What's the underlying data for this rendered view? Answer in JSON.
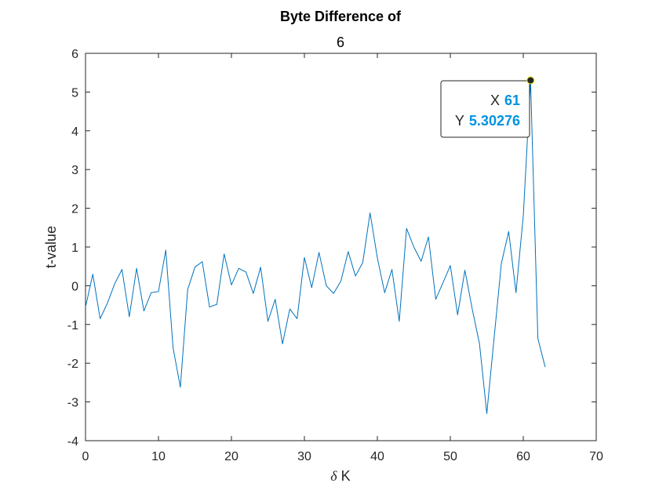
{
  "chart_data": {
    "type": "line",
    "title": "Byte Difference of",
    "subtitle": "6",
    "xlabel_symbol": "δ",
    "xlabel_text": " K",
    "ylabel": "t-value",
    "xlim": [
      0,
      70
    ],
    "ylim": [
      -4,
      6
    ],
    "xticks": [
      "0",
      "10",
      "20",
      "30",
      "40",
      "50",
      "60",
      "70"
    ],
    "yticks": [
      "-4",
      "-3",
      "-2",
      "-1",
      "0",
      "1",
      "2",
      "3",
      "4",
      "5",
      "6"
    ],
    "grid": false,
    "series": [
      {
        "color": "#0072BD",
        "x": [
          0,
          1,
          2,
          3,
          4,
          5,
          6,
          7,
          8,
          9,
          10,
          11,
          12,
          13,
          14,
          15,
          16,
          17,
          18,
          19,
          20,
          21,
          22,
          23,
          24,
          25,
          26,
          27,
          28,
          29,
          30,
          31,
          32,
          33,
          34,
          35,
          36,
          37,
          38,
          39,
          40,
          41,
          42,
          43,
          44,
          45,
          46,
          47,
          48,
          49,
          50,
          51,
          52,
          53,
          54,
          55,
          56,
          57,
          58,
          59,
          60,
          61,
          62,
          63
        ],
        "y": [
          -0.55,
          0.3,
          -0.85,
          -0.45,
          0.05,
          0.42,
          -0.8,
          0.45,
          -0.65,
          -0.18,
          -0.15,
          0.92,
          -1.6,
          -2.62,
          -0.1,
          0.48,
          0.62,
          -0.55,
          -0.48,
          0.82,
          0.02,
          0.45,
          0.35,
          -0.2,
          0.48,
          -0.92,
          -0.35,
          -1.5,
          -0.6,
          -0.85,
          0.73,
          -0.05,
          0.86,
          0.0,
          -0.2,
          0.12,
          0.88,
          0.25,
          0.6,
          1.88,
          0.72,
          -0.18,
          0.42,
          -0.92,
          1.48,
          1.0,
          0.63,
          1.26,
          -0.35,
          0.08,
          0.52,
          -0.75,
          0.4,
          -0.6,
          -1.5,
          -3.3,
          -1.35,
          0.58,
          1.4,
          -0.18,
          1.8,
          5.30276,
          -1.36,
          -2.1
        ]
      }
    ],
    "datatip": {
      "x_key": "X",
      "x_value": "61",
      "y_key": "Y",
      "y_value": "5.30276",
      "value_color": "#0093E0"
    }
  }
}
